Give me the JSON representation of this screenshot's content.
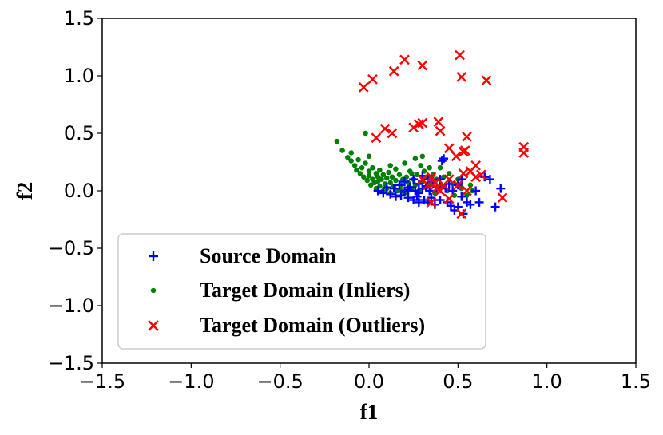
{
  "chart_data": {
    "type": "scatter",
    "title": "",
    "xlabel": "f1",
    "ylabel": "f2",
    "xlim": [
      -1.5,
      1.5
    ],
    "ylim": [
      -1.5,
      1.5
    ],
    "xticks": [
      -1.5,
      -1.0,
      -0.5,
      0.0,
      0.5,
      1.0,
      1.5
    ],
    "yticks": [
      -1.5,
      -1.0,
      -0.5,
      0.0,
      0.5,
      1.0,
      1.5
    ],
    "xtick_labels": [
      "−1.5",
      "−1.0",
      "−0.5",
      "0.0",
      "0.5",
      "1.0",
      "1.5"
    ],
    "ytick_labels": [
      "−1.5",
      "−1.0",
      "−0.5",
      "0.0",
      "0.5",
      "1.0",
      "1.5"
    ],
    "grid": false,
    "legend_position": "lower-left",
    "series": [
      {
        "name": "Source Domain",
        "marker": "plus",
        "color": "#0000ff",
        "points": [
          [
            0.05,
            0.0
          ],
          [
            0.08,
            -0.02
          ],
          [
            0.1,
            0.03
          ],
          [
            0.12,
            -0.03
          ],
          [
            0.14,
            0.02
          ],
          [
            0.15,
            -0.05
          ],
          [
            0.17,
            0.05
          ],
          [
            0.18,
            -0.04
          ],
          [
            0.2,
            0.0
          ],
          [
            0.2,
            0.08
          ],
          [
            0.22,
            -0.06
          ],
          [
            0.23,
            0.03
          ],
          [
            0.25,
            -0.08
          ],
          [
            0.25,
            0.1
          ],
          [
            0.26,
            0.0
          ],
          [
            0.27,
            -0.05
          ],
          [
            0.28,
            0.06
          ],
          [
            0.28,
            -0.1
          ],
          [
            0.3,
            0.02
          ],
          [
            0.3,
            0.13
          ],
          [
            0.31,
            -0.08
          ],
          [
            0.32,
            0.04
          ],
          [
            0.33,
            -0.1
          ],
          [
            0.33,
            0.1
          ],
          [
            0.34,
            0.0
          ],
          [
            0.35,
            -0.06
          ],
          [
            0.36,
            0.08
          ],
          [
            0.37,
            -0.12
          ],
          [
            0.38,
            0.03
          ],
          [
            0.4,
            0.1
          ],
          [
            0.4,
            -0.08
          ],
          [
            0.41,
            0.26
          ],
          [
            0.42,
            0.28
          ],
          [
            0.43,
            0.02
          ],
          [
            0.44,
            -0.1
          ],
          [
            0.45,
            0.06
          ],
          [
            0.46,
            -0.13
          ],
          [
            0.47,
            0.0
          ],
          [
            0.48,
            -0.17
          ],
          [
            0.5,
            0.05
          ],
          [
            0.5,
            -0.14
          ],
          [
            0.52,
            -0.05
          ],
          [
            0.52,
            0.1
          ],
          [
            0.53,
            -0.2
          ],
          [
            0.55,
            -0.1
          ],
          [
            0.57,
            -0.12
          ],
          [
            0.6,
            0.0
          ],
          [
            0.62,
            -0.1
          ],
          [
            0.65,
            0.12
          ],
          [
            0.68,
            0.1
          ],
          [
            0.71,
            -0.14
          ],
          [
            0.74,
            0.02
          ],
          [
            0.28,
            -0.02
          ],
          [
            0.22,
            0.01
          ]
        ]
      },
      {
        "name": "Target Domain (Inliers)",
        "marker": "circle",
        "color": "#008000",
        "points": [
          [
            -0.18,
            0.43
          ],
          [
            -0.15,
            0.35
          ],
          [
            -0.12,
            0.29
          ],
          [
            -0.1,
            0.26
          ],
          [
            -0.1,
            0.33
          ],
          [
            -0.08,
            0.22
          ],
          [
            -0.07,
            0.18
          ],
          [
            -0.06,
            0.27
          ],
          [
            -0.05,
            0.15
          ],
          [
            -0.04,
            0.2
          ],
          [
            -0.03,
            0.12
          ],
          [
            -0.02,
            0.24
          ],
          [
            -0.02,
            0.5
          ],
          [
            -0.01,
            0.09
          ],
          [
            0.0,
            0.17
          ],
          [
            0.0,
            0.13
          ],
          [
            0.01,
            0.05
          ],
          [
            0.02,
            0.2
          ],
          [
            0.02,
            0.1
          ],
          [
            0.03,
            0.07
          ],
          [
            0.04,
            0.15
          ],
          [
            0.04,
            0.02
          ],
          [
            0.05,
            0.12
          ],
          [
            0.05,
            0.08
          ],
          [
            0.06,
            0.18
          ],
          [
            0.06,
            0.04
          ],
          [
            0.07,
            0.1
          ],
          [
            0.08,
            0.0
          ],
          [
            0.08,
            0.14
          ],
          [
            0.09,
            0.06
          ],
          [
            0.1,
            0.11
          ],
          [
            0.1,
            0.02
          ],
          [
            0.11,
            0.16
          ],
          [
            0.12,
            0.07
          ],
          [
            0.12,
            -0.02
          ],
          [
            0.13,
            0.12
          ],
          [
            0.14,
            0.04
          ],
          [
            0.15,
            0.09
          ],
          [
            0.15,
            0.19
          ],
          [
            0.16,
            0.0
          ],
          [
            0.17,
            0.14
          ],
          [
            0.18,
            0.05
          ],
          [
            0.19,
            0.1
          ],
          [
            0.2,
            0.24
          ],
          [
            0.2,
            -0.02
          ],
          [
            0.21,
            0.12
          ],
          [
            0.22,
            0.07
          ],
          [
            0.23,
            0.17
          ],
          [
            0.24,
            0.02
          ],
          [
            0.25,
            0.1
          ],
          [
            0.26,
            0.28
          ],
          [
            0.26,
            0.05
          ],
          [
            0.27,
            0.14
          ],
          [
            0.28,
            0.0
          ],
          [
            0.29,
            0.22
          ],
          [
            0.3,
            0.08
          ],
          [
            0.31,
            0.17
          ],
          [
            0.32,
            0.03
          ],
          [
            0.33,
            0.12
          ],
          [
            0.34,
            0.2
          ],
          [
            0.35,
            0.06
          ],
          [
            0.36,
            0.14
          ],
          [
            0.37,
            -0.02
          ],
          [
            0.38,
            0.1
          ],
          [
            0.4,
            0.2
          ],
          [
            0.4,
            0.04
          ],
          [
            0.42,
            0.12
          ],
          [
            0.44,
            0.0
          ],
          [
            0.45,
            0.15
          ],
          [
            0.47,
            0.06
          ],
          [
            0.48,
            -0.04
          ],
          [
            0.5,
            0.1
          ],
          [
            0.52,
            0.02
          ],
          [
            0.55,
            -0.04
          ],
          [
            0.57,
            0.05
          ],
          [
            0.58,
            0.0
          ],
          [
            0.3,
            0.3
          ],
          [
            0.12,
            0.22
          ],
          [
            0.0,
            0.3
          ],
          [
            0.18,
            0.0
          ],
          [
            0.24,
            0.15
          ],
          [
            0.06,
            0.1
          ]
        ]
      },
      {
        "name": "Target Domain (Outliers)",
        "marker": "x",
        "color": "#ff0000",
        "points": [
          [
            -0.03,
            0.9
          ],
          [
            0.02,
            0.97
          ],
          [
            0.14,
            1.04
          ],
          [
            0.2,
            1.14
          ],
          [
            0.3,
            1.09
          ],
          [
            0.51,
            1.18
          ],
          [
            0.52,
            0.99
          ],
          [
            0.66,
            0.96
          ],
          [
            0.04,
            0.46
          ],
          [
            0.09,
            0.54
          ],
          [
            0.13,
            0.5
          ],
          [
            0.25,
            0.55
          ],
          [
            0.28,
            0.58
          ],
          [
            0.3,
            0.59
          ],
          [
            0.39,
            0.6
          ],
          [
            0.4,
            0.52
          ],
          [
            0.45,
            0.37
          ],
          [
            0.49,
            0.3
          ],
          [
            0.53,
            0.34
          ],
          [
            0.54,
            0.35
          ],
          [
            0.55,
            0.47
          ],
          [
            0.57,
            0.17
          ],
          [
            0.6,
            0.22
          ],
          [
            0.63,
            0.14
          ],
          [
            0.87,
            0.38
          ],
          [
            0.87,
            0.33
          ],
          [
            0.3,
            0.1
          ],
          [
            0.33,
            0.05
          ],
          [
            0.35,
            0.12
          ],
          [
            0.37,
            0.07
          ],
          [
            0.38,
            0.02
          ],
          [
            0.42,
            0.05
          ],
          [
            0.45,
            0.1
          ],
          [
            0.5,
            0.05
          ],
          [
            0.53,
            0.15
          ],
          [
            0.55,
            0.0
          ],
          [
            0.35,
            -0.1
          ],
          [
            0.45,
            -0.07
          ],
          [
            0.52,
            -0.2
          ],
          [
            0.75,
            -0.06
          ],
          [
            0.6,
            0.12
          ],
          [
            0.4,
            0.0
          ]
        ]
      }
    ]
  }
}
